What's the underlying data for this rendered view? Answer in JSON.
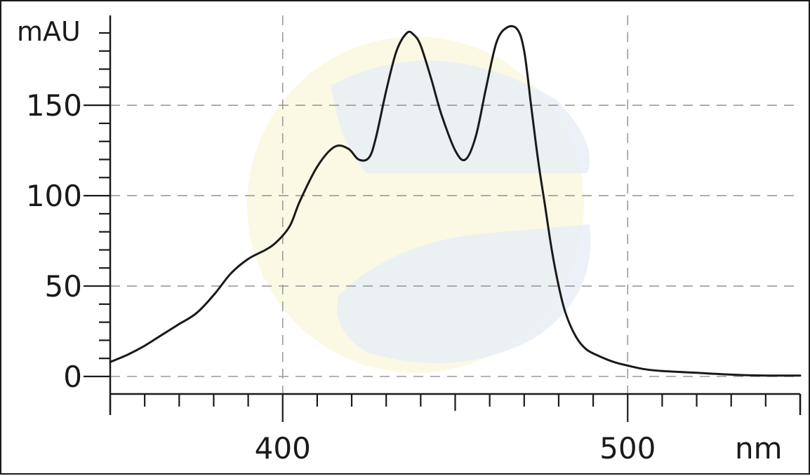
{
  "chart_data": {
    "type": "line",
    "title": "",
    "xlabel": "nm",
    "ylabel": "mAU",
    "xlim": [
      350,
      550
    ],
    "ylim": [
      0,
      190
    ],
    "x_ticks": [
      400,
      500
    ],
    "x_tick_labels": [
      "400",
      "500"
    ],
    "y_ticks": [
      0,
      50,
      100,
      150
    ],
    "y_tick_labels": [
      "0",
      "50",
      "100",
      "150"
    ],
    "grid": true,
    "legend": "none",
    "line_color": "#1a1a1a",
    "grid_color": "#9a9a9a",
    "series": [
      {
        "x": [
          350,
          355,
          360,
          365,
          370,
          375,
          380,
          385,
          390,
          395,
          398,
          402,
          405,
          410,
          415,
          419,
          422,
          425,
          427,
          430,
          433,
          436,
          438,
          440,
          443,
          446,
          450,
          453,
          456,
          459,
          462,
          465,
          468,
          470,
          472,
          474,
          476,
          478,
          480,
          482,
          485,
          488,
          492,
          496,
          500,
          505,
          510,
          520,
          530,
          540,
          550
        ],
        "y": [
          8,
          12,
          17,
          23,
          29,
          35,
          45,
          57,
          65,
          70,
          74,
          83,
          97,
          116,
          127,
          126,
          120,
          121,
          132,
          158,
          180,
          190,
          189,
          183,
          165,
          145,
          125,
          120,
          133,
          160,
          185,
          193,
          192,
          180,
          150,
          120,
          95,
          70,
          50,
          35,
          22,
          15,
          11,
          8,
          6,
          4,
          3,
          2,
          1,
          0.5,
          0.5
        ]
      }
    ]
  }
}
